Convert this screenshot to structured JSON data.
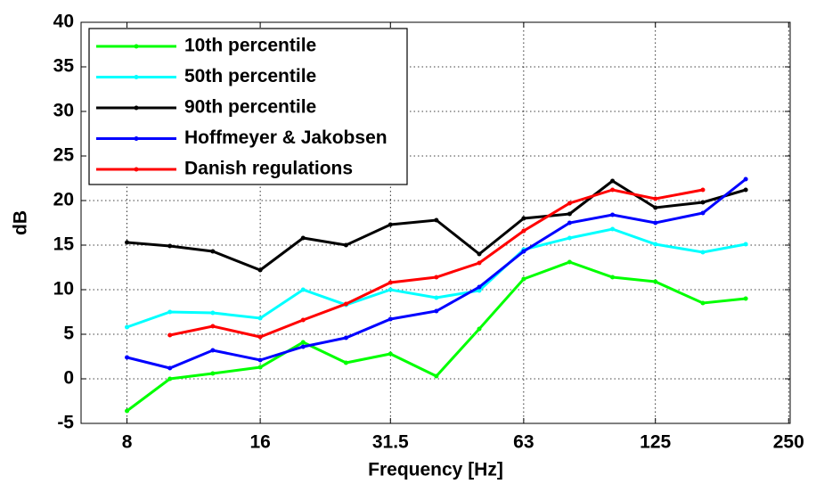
{
  "chart_data": {
    "type": "line",
    "x_label": "Frequency [Hz]",
    "y_label": "dB",
    "x": [
      8,
      10,
      12.5,
      16,
      20,
      25,
      31.5,
      40,
      50,
      63,
      80,
      100,
      125,
      160,
      200
    ],
    "series": [
      {
        "name": "10th percentile",
        "color": "#00ff00",
        "values": [
          -3.6,
          0,
          0.6,
          1.3,
          4.1,
          1.8,
          2.8,
          0.3,
          5.6,
          11.2,
          13.1,
          11.4,
          10.9,
          8.5,
          9.0
        ]
      },
      {
        "name": "50th percentile",
        "color": "#00ffff",
        "values": [
          5.8,
          7.5,
          7.4,
          6.8,
          10,
          8.3,
          10,
          9.1,
          9.9,
          14.5,
          15.8,
          16.8,
          15.1,
          14.2,
          15.1
        ]
      },
      {
        "name": "90th percentile",
        "color": "#000000",
        "values": [
          15.3,
          14.9,
          14.3,
          12.2,
          15.8,
          15,
          17.3,
          17.8,
          14,
          18,
          18.5,
          22.2,
          19.2,
          19.8,
          21.2
        ]
      },
      {
        "name": "Hoffmeyer & Jakobsen",
        "color": "#0000ff",
        "values": [
          2.4,
          1.2,
          3.2,
          2.1,
          3.6,
          4.6,
          6.7,
          7.6,
          10.3,
          14.3,
          17.5,
          18.4,
          17.5,
          18.6,
          22.4
        ]
      },
      {
        "name": "Danish regulations",
        "color": "#ff0000",
        "values": [
          null,
          4.9,
          5.9,
          4.7,
          6.6,
          8.4,
          10.8,
          11.4,
          13,
          16.6,
          19.7,
          21.2,
          20.2,
          21.2,
          null
        ]
      }
    ],
    "xscale": "log",
    "xlim": [
      6.3,
      252
    ],
    "xticks": [
      8,
      16,
      31.5,
      63,
      125,
      250
    ],
    "ylim": [
      -5,
      40
    ],
    "yticks": [
      -5,
      0,
      5,
      10,
      15,
      20,
      25,
      30,
      35,
      40
    ],
    "grid": true,
    "legend": "upper left"
  }
}
